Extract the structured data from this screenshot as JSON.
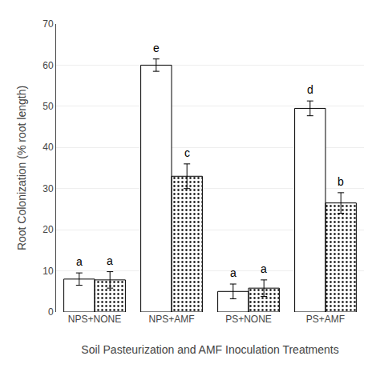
{
  "chart_data": {
    "type": "bar",
    "categories": [
      "NPS+NONE",
      "NPS+AMF",
      "PS+NONE",
      "PS+AMF"
    ],
    "series": [
      {
        "color": "white",
        "values": [
          8.0,
          60.0,
          5.0,
          49.5
        ],
        "errors": [
          1.5,
          1.5,
          1.8,
          1.8
        ],
        "annotations": [
          "a",
          "e",
          "a",
          "d"
        ]
      },
      {
        "color": "#888888",
        "values": [
          7.8,
          33.0,
          5.8,
          26.5
        ],
        "errors": [
          2.0,
          3.0,
          2.0,
          2.5
        ],
        "annotations": [
          "a",
          "c",
          "a",
          "b"
        ]
      }
    ],
    "xlabel": "Soil Pasteurization and AMF Inoculation Treatments",
    "ylabel": "Root Colonization (% root length)",
    "ylim": [
      0,
      70
    ],
    "yticks": [
      0,
      10,
      20,
      30,
      40,
      50,
      60,
      70
    ],
    "grid": true
  }
}
